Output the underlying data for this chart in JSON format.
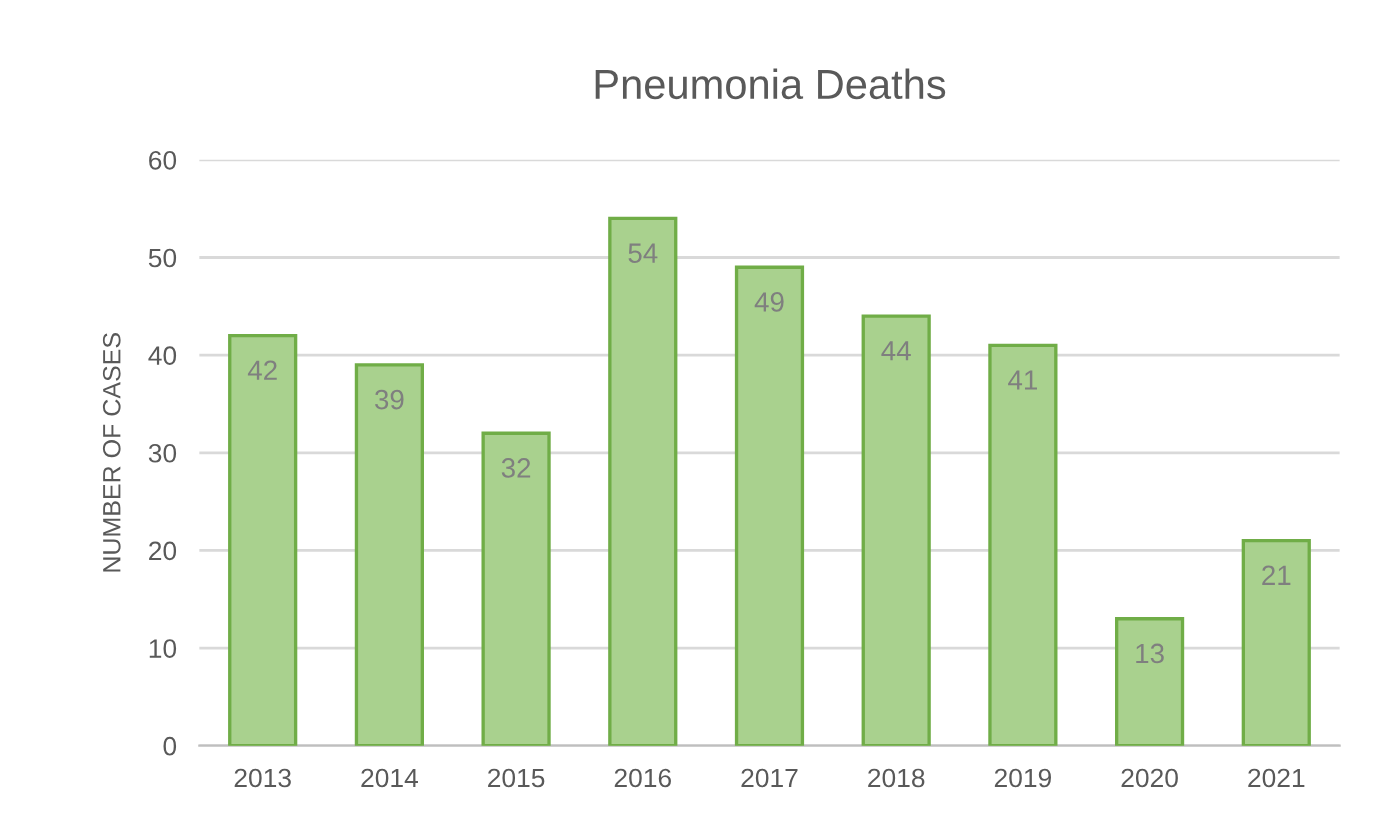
{
  "chart_data": {
    "type": "bar",
    "title": "Pneumonia Deaths",
    "ylabel": "NUMBER OF CASES",
    "categories": [
      "2013",
      "2014",
      "2015",
      "2016",
      "2017",
      "2018",
      "2019",
      "2020",
      "2021"
    ],
    "values": [
      42,
      39,
      32,
      54,
      49,
      44,
      41,
      13,
      21
    ],
    "color": "#a9d18e",
    "ylim": [
      0,
      60
    ],
    "yticks": [
      0,
      10,
      20,
      30,
      40,
      50,
      60
    ],
    "grid": "y",
    "data_labels": true
  }
}
